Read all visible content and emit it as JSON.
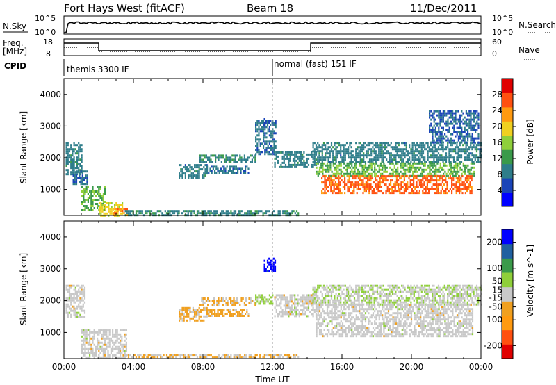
{
  "header": {
    "station": "Fort Hays West (fitACF)",
    "beam": "Beam 18",
    "date": "11/Dec/2011"
  },
  "strips": {
    "nsky_label": "N.Sky",
    "nsky_ticks": [
      "10^5",
      "10^0"
    ],
    "nsearch_label": "N.Search",
    "nsearch_ticks": [
      "10^5",
      "10^0"
    ],
    "freq_label": "Freq.",
    "freq_unit": "[MHz]",
    "freq_ticks": [
      "18",
      "8"
    ],
    "nave_label": "Nave",
    "nave_ticks": [
      "60",
      "0"
    ],
    "cpid_label": "CPID",
    "cpid_modes": [
      {
        "label": "themis 3300 IF",
        "start_hour": 0,
        "end_hour": 12
      },
      {
        "label": "normal (fast) 151 IF",
        "start_hour": 12,
        "end_hour": 24
      }
    ],
    "freq_series": {
      "hours": [
        0,
        2,
        14.2,
        24
      ],
      "high_low": [
        "high",
        "low",
        "high",
        "high"
      ]
    }
  },
  "chart_data": [
    {
      "type": "heatmap",
      "name": "power",
      "ylabel": "Slant Range [km]",
      "xlabel": "",
      "xlim": [
        0,
        24
      ],
      "ylim": [
        180,
        4500
      ],
      "yticks": [
        1000,
        2000,
        3000,
        4000
      ],
      "colorbar": {
        "label": "Power [dB]",
        "ticks": [
          4,
          8,
          12,
          16,
          20,
          24,
          28
        ],
        "range": [
          0,
          32
        ],
        "colors": [
          "#0000ff",
          "#1a44b8",
          "#2e7d8a",
          "#3a9a4a",
          "#8fcf3a",
          "#f0d020",
          "#ff9a10",
          "#ff5010",
          "#e00000"
        ]
      },
      "regions": [
        {
          "t0": 0.1,
          "t1": 1.0,
          "r0": 1500,
          "r1": 2500,
          "level": 9
        },
        {
          "t0": 0.5,
          "t1": 1.3,
          "r0": 1150,
          "r1": 1600,
          "level": 8
        },
        {
          "t0": 1.0,
          "t1": 2.4,
          "r0": 350,
          "r1": 1100,
          "level": 14
        },
        {
          "t0": 2.0,
          "t1": 3.4,
          "r0": 200,
          "r1": 600,
          "level": 19
        },
        {
          "t0": 2.8,
          "t1": 3.6,
          "r0": 220,
          "r1": 420,
          "level": 24
        },
        {
          "t0": 3.5,
          "t1": 13.5,
          "r0": 200,
          "r1": 350,
          "level": 10
        },
        {
          "t0": 6.6,
          "t1": 8.2,
          "r0": 1400,
          "r1": 1800,
          "level": 9
        },
        {
          "t0": 7.8,
          "t1": 11.0,
          "r0": 1850,
          "r1": 2100,
          "level": 10
        },
        {
          "t0": 8.2,
          "t1": 10.6,
          "r0": 1550,
          "r1": 1750,
          "level": 8
        },
        {
          "t0": 11.0,
          "t1": 12.2,
          "r0": 2100,
          "r1": 3200,
          "level": 8
        },
        {
          "t0": 11.5,
          "t1": 12.0,
          "r0": 3000,
          "r1": 3250,
          "level": 7
        },
        {
          "t0": 12.1,
          "t1": 14.5,
          "r0": 1700,
          "r1": 2200,
          "level": 9
        },
        {
          "t0": 14.3,
          "t1": 24.0,
          "r0": 1900,
          "r1": 2500,
          "level": 9
        },
        {
          "t0": 14.5,
          "t1": 23.6,
          "r0": 1450,
          "r1": 1850,
          "level": 14
        },
        {
          "t0": 14.8,
          "t1": 23.5,
          "r0": 900,
          "r1": 1450,
          "level": 26
        },
        {
          "t0": 21.0,
          "t1": 23.9,
          "r0": 2500,
          "r1": 3500,
          "level": 7
        }
      ]
    },
    {
      "type": "heatmap",
      "name": "velocity",
      "ylabel": "Slant Range [km]",
      "xlabel": "Time UT",
      "xlim": [
        0,
        24
      ],
      "ylim": [
        180,
        4500
      ],
      "yticks": [
        1000,
        2000,
        3000,
        4000
      ],
      "xticks": [
        "00:00",
        "04:00",
        "08:00",
        "12:00",
        "16:00",
        "20:00",
        "00:00"
      ],
      "colorbar": {
        "label": "Velocity [m s^-1]",
        "ticks": [
          200,
          100,
          50,
          15,
          -15,
          -50,
          -100,
          -200
        ],
        "range": [
          -250,
          250
        ],
        "colors": [
          "#e00000",
          "#ff5010",
          "#ff9a10",
          "#f0a020",
          "#c8c8c8",
          "#8fcf3a",
          "#3a9a4a",
          "#2060a0",
          "#0000ff"
        ]
      },
      "regions": [
        {
          "t0": 0.1,
          "t1": 1.2,
          "r0": 1500,
          "r1": 2500,
          "level": 0
        },
        {
          "t0": 1.0,
          "t1": 3.6,
          "r0": 200,
          "r1": 1100,
          "level": 0
        },
        {
          "t0": 3.5,
          "t1": 13.5,
          "r0": 200,
          "r1": 330,
          "level": -30
        },
        {
          "t0": 6.6,
          "t1": 8.2,
          "r0": 1400,
          "r1": 1800,
          "level": -40
        },
        {
          "t0": 7.8,
          "t1": 11.0,
          "r0": 1850,
          "r1": 2100,
          "level": -30
        },
        {
          "t0": 8.2,
          "t1": 10.6,
          "r0": 1550,
          "r1": 1750,
          "level": -50
        },
        {
          "t0": 11.0,
          "t1": 12.0,
          "r0": 1900,
          "r1": 2200,
          "level": 40
        },
        {
          "t0": 11.5,
          "t1": 12.2,
          "r0": 2900,
          "r1": 3350,
          "level": 220
        },
        {
          "t0": 12.1,
          "t1": 14.5,
          "r0": 1500,
          "r1": 2200,
          "level": 0
        },
        {
          "t0": 14.3,
          "t1": 24.0,
          "r0": 1900,
          "r1": 2500,
          "level": 20
        },
        {
          "t0": 14.5,
          "t1": 23.5,
          "r0": 900,
          "r1": 1900,
          "level": 0
        }
      ]
    }
  ]
}
